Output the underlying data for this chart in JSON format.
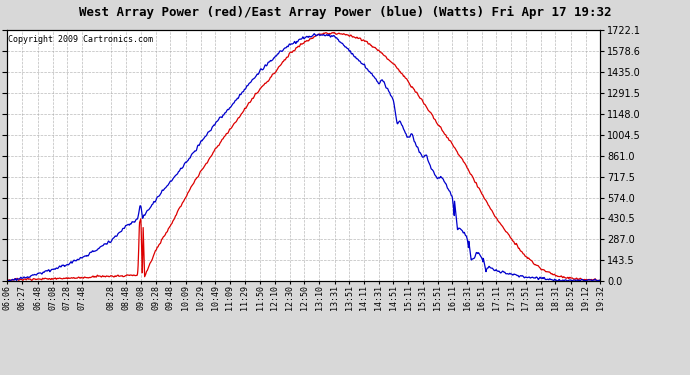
{
  "title": "West Array Power (red)/East Array Power (blue) (Watts) Fri Apr 17 19:32",
  "copyright": "Copyright 2009 Cartronics.com",
  "background_color": "#d8d8d8",
  "plot_bg_color": "#ffffff",
  "grid_color": "#aaaaaa",
  "line_color_red": "#dd0000",
  "line_color_blue": "#0000cc",
  "ylim": [
    0.0,
    1722.1
  ],
  "yticks": [
    0.0,
    143.5,
    287.0,
    430.5,
    574.0,
    717.5,
    861.0,
    1004.5,
    1148.0,
    1291.5,
    1435.0,
    1578.6,
    1722.1
  ],
  "xtick_labels": [
    "06:06",
    "06:27",
    "06:48",
    "07:08",
    "07:28",
    "07:48",
    "08:28",
    "08:48",
    "09:08",
    "09:28",
    "09:48",
    "10:09",
    "10:29",
    "10:49",
    "11:09",
    "11:29",
    "11:50",
    "12:10",
    "12:30",
    "12:50",
    "13:10",
    "13:31",
    "13:51",
    "14:11",
    "14:31",
    "14:51",
    "15:11",
    "15:31",
    "15:51",
    "16:11",
    "16:31",
    "16:51",
    "17:11",
    "17:31",
    "17:51",
    "18:11",
    "18:31",
    "18:52",
    "19:12",
    "19:32"
  ]
}
